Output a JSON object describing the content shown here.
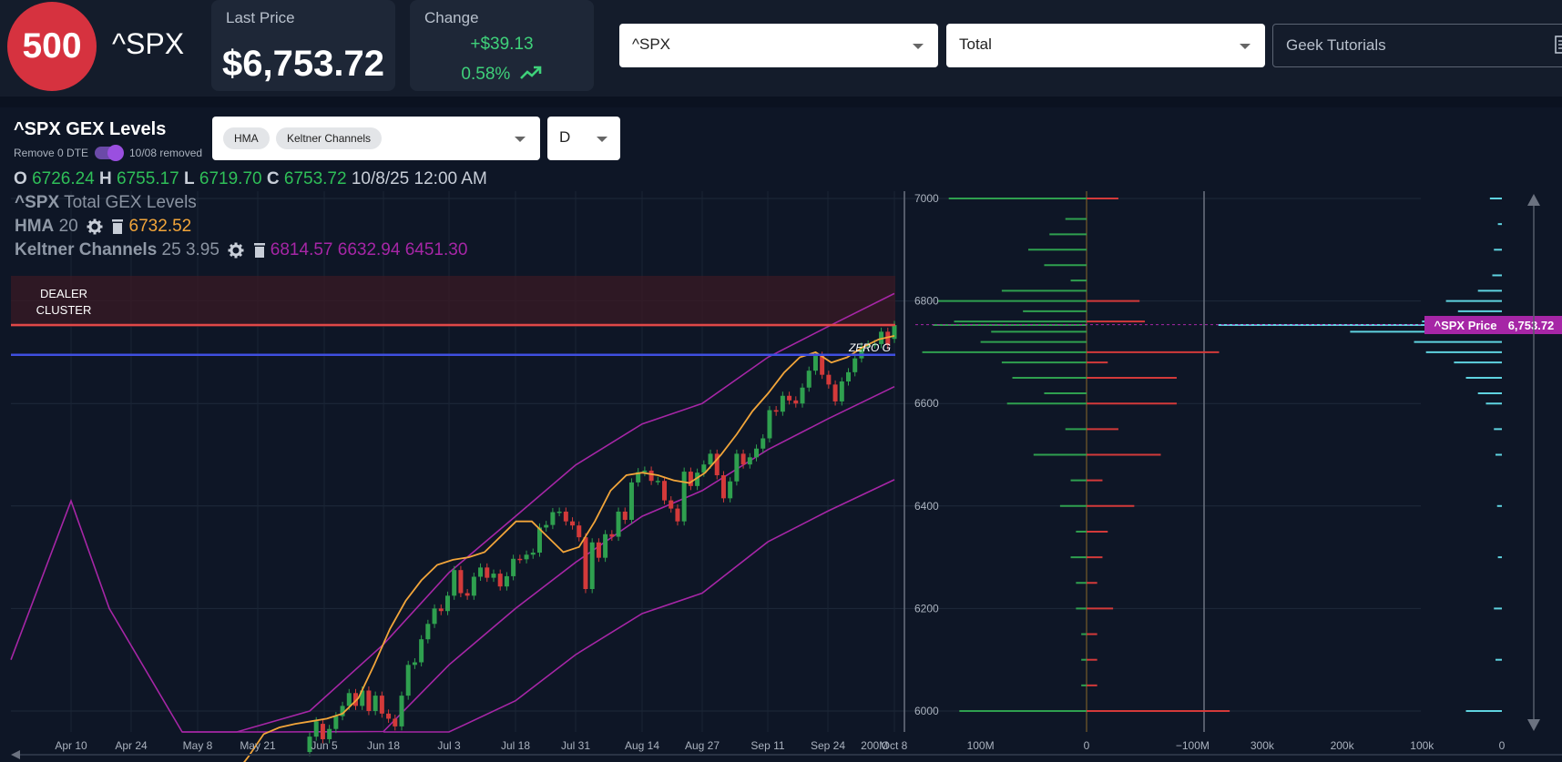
{
  "header": {
    "logo_text": "500",
    "ticker": "^SPX",
    "last_price_label": "Last Price",
    "last_price": "$6,753.72",
    "change_label": "Change",
    "change_value": "+$39.13",
    "change_pct": "0.58%",
    "symbol_select": "^SPX",
    "gex_select": "Total",
    "tutorials_select": "Geek Tutorials"
  },
  "panel": {
    "title": "^SPX GEX Levels",
    "remove_dte_label": "Remove 0 DTE",
    "removed_label": "10/08 removed",
    "indicator_chips": [
      "HMA",
      "Keltner Channels"
    ],
    "timeframe": "D",
    "ohlc": {
      "o_label": "O",
      "o": "6726.24",
      "h_label": "H",
      "h": "6755.17",
      "l_label": "L",
      "l": "6719.70",
      "c_label": "C",
      "c": "6753.72",
      "date": "10/8/25 12:00 AM"
    }
  },
  "legend": {
    "series": "^SPX",
    "series_name": "Total GEX Levels",
    "hma_label": "HMA",
    "hma_period": "20",
    "hma_value": "6732.52",
    "keltner_label": "Keltner Channels",
    "keltner_params": "25 3.95",
    "keltner_values": "6814.57 6632.94 6451.30"
  },
  "annotations": {
    "dealer_line1": "DEALER",
    "dealer_line2": "CLUSTER",
    "zero_g": "ZERO G",
    "price_tag_label": "^SPX Price",
    "price_tag_value": "6,753.72"
  },
  "colors": {
    "up": "#2fa04f",
    "down": "#d33a3a",
    "hma": "#f2a53a",
    "keltner": "#a626a6",
    "dealer_line": "#e04848",
    "zero_g_line": "#3f4fe0",
    "volume_bar": "#5fd3e0"
  },
  "chart_data": [
    {
      "type": "line",
      "title": "^SPX Total GEX Levels",
      "x_ticks": [
        "Apr 10",
        "Apr 24",
        "May 8",
        "May 21",
        "Jun 5",
        "Jun 18",
        "Jul 3",
        "Jul 18",
        "Jul 31",
        "Aug 14",
        "Aug 27",
        "Sep 11",
        "Sep 24",
        "Oct 8"
      ],
      "y_ticks": [
        6000,
        6200,
        6400,
        6600,
        6800,
        7000
      ],
      "ylim": [
        5955,
        7010
      ],
      "levels": [
        {
          "name": "DEALER CLUSTER",
          "value": 6753
        },
        {
          "name": "ZERO G",
          "value": 6695
        }
      ],
      "candles": [
        {
          "d": "May 26",
          "o": 5920,
          "c": 5950
        },
        {
          "d": "May 29",
          "o": 5950,
          "c": 5980
        },
        {
          "d": "Jun 2",
          "o": 5975,
          "c": 5945
        },
        {
          "d": "Jun 5",
          "o": 5945,
          "c": 5965
        },
        {
          "d": "Jun 6",
          "o": 5965,
          "c": 5990
        },
        {
          "d": "Jun 9",
          "o": 5990,
          "c": 6010
        },
        {
          "d": "Jun 10",
          "o": 6010,
          "c": 6035
        },
        {
          "d": "Jun 11",
          "o": 6035,
          "c": 6010
        },
        {
          "d": "Jun 12",
          "o": 6010,
          "c": 6040
        },
        {
          "d": "Jun 13",
          "o": 6040,
          "c": 6000
        },
        {
          "d": "Jun 16",
          "o": 6000,
          "c": 6030
        },
        {
          "d": "Jun 17",
          "o": 6030,
          "c": 5995
        },
        {
          "d": "Jun 18",
          "o": 5995,
          "c": 5985
        },
        {
          "d": "Jun 20",
          "o": 5985,
          "c": 5970
        },
        {
          "d": "Jun 23",
          "o": 5970,
          "c": 6030
        },
        {
          "d": "Jun 24",
          "o": 6030,
          "c": 6090
        },
        {
          "d": "Jun 25",
          "o": 6090,
          "c": 6095
        },
        {
          "d": "Jun 26",
          "o": 6095,
          "c": 6140
        },
        {
          "d": "Jun 27",
          "o": 6140,
          "c": 6170
        },
        {
          "d": "Jun 30",
          "o": 6170,
          "c": 6200
        },
        {
          "d": "Jul 1",
          "o": 6200,
          "c": 6195
        },
        {
          "d": "Jul 2",
          "o": 6195,
          "c": 6225
        },
        {
          "d": "Jul 3",
          "o": 6225,
          "c": 6275
        },
        {
          "d": "Jul 7",
          "o": 6275,
          "c": 6230
        },
        {
          "d": "Jul 8",
          "o": 6230,
          "c": 6225
        },
        {
          "d": "Jul 9",
          "o": 6225,
          "c": 6262
        },
        {
          "d": "Jul 10",
          "o": 6262,
          "c": 6280
        },
        {
          "d": "Jul 11",
          "o": 6280,
          "c": 6260
        },
        {
          "d": "Jul 14",
          "o": 6260,
          "c": 6268
        },
        {
          "d": "Jul 15",
          "o": 6268,
          "c": 6243
        },
        {
          "d": "Jul 16",
          "o": 6243,
          "c": 6263
        },
        {
          "d": "Jul 17",
          "o": 6263,
          "c": 6297
        },
        {
          "d": "Jul 18",
          "o": 6297,
          "c": 6296
        },
        {
          "d": "Jul 21",
          "o": 6296,
          "c": 6305
        },
        {
          "d": "Jul 22",
          "o": 6305,
          "c": 6309
        },
        {
          "d": "Jul 23",
          "o": 6309,
          "c": 6358
        },
        {
          "d": "Jul 24",
          "o": 6358,
          "c": 6363
        },
        {
          "d": "Jul 25",
          "o": 6363,
          "c": 6388
        },
        {
          "d": "Jul 28",
          "o": 6388,
          "c": 6389
        },
        {
          "d": "Jul 29",
          "o": 6389,
          "c": 6370
        },
        {
          "d": "Jul 30",
          "o": 6370,
          "c": 6362
        },
        {
          "d": "Jul 31",
          "o": 6362,
          "c": 6339
        },
        {
          "d": "Aug 1",
          "o": 6339,
          "c": 6238
        },
        {
          "d": "Aug 4",
          "o": 6238,
          "c": 6329
        },
        {
          "d": "Aug 5",
          "o": 6329,
          "c": 6299
        },
        {
          "d": "Aug 6",
          "o": 6299,
          "c": 6345
        },
        {
          "d": "Aug 7",
          "o": 6345,
          "c": 6340
        },
        {
          "d": "Aug 8",
          "o": 6340,
          "c": 6389
        },
        {
          "d": "Aug 11",
          "o": 6389,
          "c": 6373
        },
        {
          "d": "Aug 12",
          "o": 6373,
          "c": 6446
        },
        {
          "d": "Aug 13",
          "o": 6446,
          "c": 6466
        },
        {
          "d": "Aug 14",
          "o": 6466,
          "c": 6469
        },
        {
          "d": "Aug 15",
          "o": 6469,
          "c": 6449
        },
        {
          "d": "Aug 18",
          "o": 6449,
          "c": 6449
        },
        {
          "d": "Aug 19",
          "o": 6449,
          "c": 6411
        },
        {
          "d": "Aug 20",
          "o": 6411,
          "c": 6395
        },
        {
          "d": "Aug 21",
          "o": 6395,
          "c": 6370
        },
        {
          "d": "Aug 22",
          "o": 6370,
          "c": 6467
        },
        {
          "d": "Aug 25",
          "o": 6467,
          "c": 6439
        },
        {
          "d": "Aug 26",
          "o": 6439,
          "c": 6465
        },
        {
          "d": "Aug 27",
          "o": 6465,
          "c": 6481
        },
        {
          "d": "Aug 28",
          "o": 6481,
          "c": 6502
        },
        {
          "d": "Aug 29",
          "o": 6502,
          "c": 6460
        },
        {
          "d": "Sep 2",
          "o": 6460,
          "c": 6415
        },
        {
          "d": "Sep 3",
          "o": 6415,
          "c": 6448
        },
        {
          "d": "Sep 4",
          "o": 6448,
          "c": 6502
        },
        {
          "d": "Sep 5",
          "o": 6502,
          "c": 6481
        },
        {
          "d": "Sep 8",
          "o": 6481,
          "c": 6495
        },
        {
          "d": "Sep 9",
          "o": 6495,
          "c": 6512
        },
        {
          "d": "Sep 10",
          "o": 6512,
          "c": 6532
        },
        {
          "d": "Sep 11",
          "o": 6532,
          "c": 6587
        },
        {
          "d": "Sep 12",
          "o": 6587,
          "c": 6584
        },
        {
          "d": "Sep 15",
          "o": 6584,
          "c": 6615
        },
        {
          "d": "Sep 16",
          "o": 6615,
          "c": 6606
        },
        {
          "d": "Sep 17",
          "o": 6606,
          "c": 6600
        },
        {
          "d": "Sep 18",
          "o": 6600,
          "c": 6631
        },
        {
          "d": "Sep 19",
          "o": 6631,
          "c": 6664
        },
        {
          "d": "Sep 22",
          "o": 6664,
          "c": 6693
        },
        {
          "d": "Sep 23",
          "o": 6693,
          "c": 6656
        },
        {
          "d": "Sep 24",
          "o": 6656,
          "c": 6637
        },
        {
          "d": "Sep 25",
          "o": 6637,
          "c": 6604
        },
        {
          "d": "Sep 26",
          "o": 6604,
          "c": 6643
        },
        {
          "d": "Sep 29",
          "o": 6643,
          "c": 6661
        },
        {
          "d": "Sep 30",
          "o": 6661,
          "c": 6688
        },
        {
          "d": "Oct 1",
          "o": 6688,
          "c": 6711
        },
        {
          "d": "Oct 2",
          "o": 6711,
          "c": 6715
        },
        {
          "d": "Oct 3",
          "o": 6715,
          "c": 6716
        },
        {
          "d": "Oct 6",
          "o": 6716,
          "c": 6740
        },
        {
          "d": "Oct 7",
          "o": 6740,
          "c": 6714
        },
        {
          "d": "Oct 8",
          "o": 6726,
          "c": 6753
        }
      ],
      "hma": [
        5870,
        5910,
        5955,
        5968,
        5975,
        5980,
        5985,
        5995,
        6025,
        6090,
        6160,
        6215,
        6255,
        6285,
        6295,
        6300,
        6310,
        6340,
        6370,
        6370,
        6340,
        6310,
        6320,
        6370,
        6430,
        6460,
        6465,
        6460,
        6450,
        6445,
        6465,
        6500,
        6540,
        6585,
        6620,
        6660,
        6690,
        6700,
        6680,
        6690,
        6710,
        6725,
        6732
      ],
      "keltner_upper_end": 6814.57,
      "keltner_mid_end": 6632.94,
      "keltner_lower_end": 6451.3
    },
    {
      "type": "bar",
      "title": "GEX by strike",
      "x_ticks": [
        "200M",
        "100M",
        "0",
        "−100M"
      ],
      "xlim": [
        200,
        -140
      ],
      "y_ticks": [
        6000,
        6200,
        6400,
        6600,
        6800,
        7000
      ],
      "series": [
        {
          "name": "call",
          "color": "#2fa04f",
          "values": [
            [
              7000,
              130
            ],
            [
              6960,
              20
            ],
            [
              6930,
              35
            ],
            [
              6900,
              55
            ],
            [
              6870,
              40
            ],
            [
              6840,
              15
            ],
            [
              6820,
              80
            ],
            [
              6800,
              140
            ],
            [
              6780,
              60
            ],
            [
              6760,
              125
            ],
            [
              6753,
              145
            ],
            [
              6740,
              90
            ],
            [
              6720,
              100
            ],
            [
              6700,
              155
            ],
            [
              6680,
              80
            ],
            [
              6650,
              70
            ],
            [
              6620,
              40
            ],
            [
              6600,
              75
            ],
            [
              6550,
              20
            ],
            [
              6500,
              50
            ],
            [
              6450,
              15
            ],
            [
              6400,
              25
            ],
            [
              6350,
              10
            ],
            [
              6300,
              15
            ],
            [
              6250,
              10
            ],
            [
              6200,
              10
            ],
            [
              6150,
              5
            ],
            [
              6100,
              5
            ],
            [
              6050,
              5
            ],
            [
              6000,
              120
            ]
          ]
        },
        {
          "name": "put",
          "color": "#d33a3a",
          "values": [
            [
              7000,
              -30
            ],
            [
              6800,
              -50
            ],
            [
              6760,
              -55
            ],
            [
              6700,
              -125
            ],
            [
              6680,
              -20
            ],
            [
              6650,
              -85
            ],
            [
              6600,
              -85
            ],
            [
              6550,
              -30
            ],
            [
              6500,
              -70
            ],
            [
              6450,
              -15
            ],
            [
              6400,
              -45
            ],
            [
              6350,
              -20
            ],
            [
              6300,
              -15
            ],
            [
              6250,
              -10
            ],
            [
              6200,
              -25
            ],
            [
              6150,
              -10
            ],
            [
              6100,
              -10
            ],
            [
              6050,
              -10
            ],
            [
              6000,
              -135
            ]
          ]
        }
      ]
    },
    {
      "type": "bar",
      "title": "volume by strike",
      "x_ticks": [
        "300k",
        "200k",
        "100k",
        "0"
      ],
      "xlim": [
        300,
        0
      ],
      "y_ticks": [
        6000,
        6200,
        6400,
        6600,
        6800,
        7000
      ],
      "series": [
        {
          "name": "volume",
          "color": "#5fd3e0",
          "values": [
            [
              7000,
              15
            ],
            [
              6950,
              5
            ],
            [
              6900,
              10
            ],
            [
              6850,
              12
            ],
            [
              6820,
              30
            ],
            [
              6800,
              70
            ],
            [
              6780,
              55
            ],
            [
              6760,
              100
            ],
            [
              6753,
              355
            ],
            [
              6740,
              190
            ],
            [
              6720,
              110
            ],
            [
              6700,
              95
            ],
            [
              6680,
              60
            ],
            [
              6650,
              45
            ],
            [
              6620,
              30
            ],
            [
              6600,
              20
            ],
            [
              6550,
              10
            ],
            [
              6500,
              8
            ],
            [
              6400,
              6
            ],
            [
              6300,
              5
            ],
            [
              6200,
              10
            ],
            [
              6100,
              8
            ],
            [
              6000,
              45
            ]
          ]
        }
      ]
    }
  ]
}
